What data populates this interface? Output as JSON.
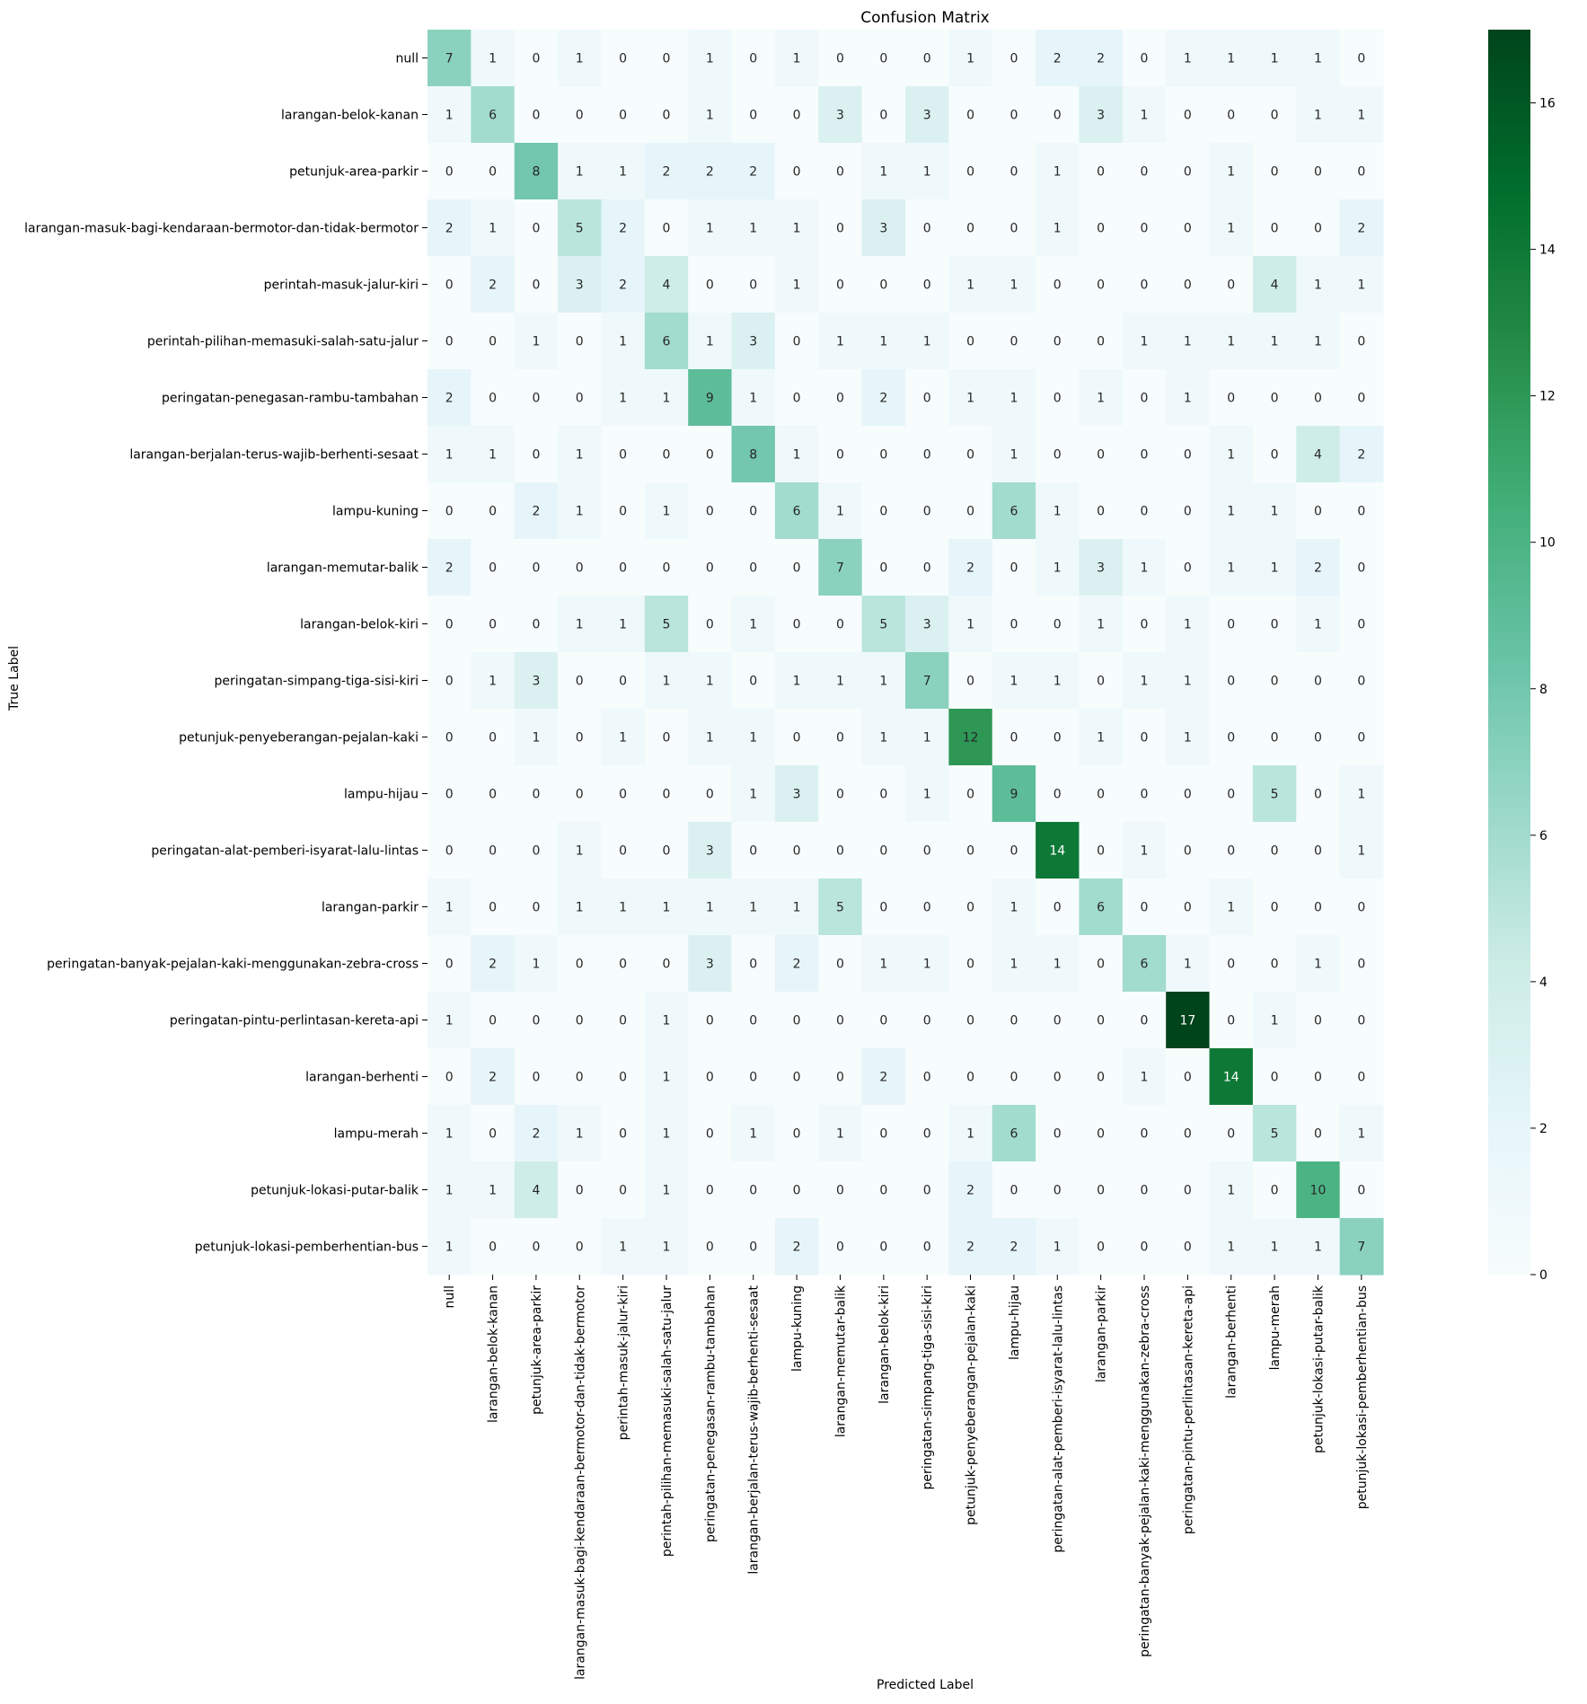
{
  "chart_data": {
    "type": "heatmap",
    "title": "Confusion Matrix",
    "xlabel": "Predicted Label",
    "ylabel": "True Label",
    "labels": [
      "null",
      "larangan-belok-kanan",
      "petunjuk-area-parkir",
      "larangan-masuk-bagi-kendaraan-bermotor-dan-tidak-bermotor",
      "perintah-masuk-jalur-kiri",
      "perintah-pilihan-memasuki-salah-satu-jalur",
      "peringatan-penegasan-rambu-tambahan",
      "larangan-berjalan-terus-wajib-berhenti-sesaat",
      "lampu-kuning",
      "larangan-memutar-balik",
      "larangan-belok-kiri",
      "peringatan-simpang-tiga-sisi-kiri",
      "petunjuk-penyeberangan-pejalan-kaki",
      "lampu-hijau",
      "peringatan-alat-pemberi-isyarat-lalu-lintas",
      "larangan-parkir",
      "peringatan-banyak-pejalan-kaki-menggunakan-zebra-cross",
      "peringatan-pintu-perlintasan-kereta-api",
      "larangan-berhenti",
      "lampu-merah",
      "petunjuk-lokasi-putar-balik",
      "petunjuk-lokasi-pemberhentian-bus"
    ],
    "matrix": [
      [
        7,
        1,
        0,
        1,
        0,
        0,
        1,
        0,
        1,
        0,
        0,
        0,
        1,
        0,
        2,
        2,
        0,
        1,
        1,
        1,
        1,
        0
      ],
      [
        1,
        6,
        0,
        0,
        0,
        0,
        1,
        0,
        0,
        3,
        0,
        3,
        0,
        0,
        0,
        3,
        1,
        0,
        0,
        0,
        1,
        1
      ],
      [
        0,
        0,
        8,
        1,
        1,
        2,
        2,
        2,
        0,
        0,
        1,
        1,
        0,
        0,
        1,
        0,
        0,
        0,
        1,
        0,
        0,
        0
      ],
      [
        2,
        1,
        0,
        5,
        2,
        0,
        1,
        1,
        1,
        0,
        3,
        0,
        0,
        0,
        1,
        0,
        0,
        0,
        1,
        0,
        0,
        2
      ],
      [
        0,
        2,
        0,
        3,
        2,
        4,
        0,
        0,
        1,
        0,
        0,
        0,
        1,
        1,
        0,
        0,
        0,
        0,
        0,
        4,
        1,
        1
      ],
      [
        0,
        0,
        1,
        0,
        1,
        6,
        1,
        3,
        0,
        1,
        1,
        1,
        0,
        0,
        0,
        0,
        1,
        1,
        1,
        1,
        1,
        0
      ],
      [
        2,
        0,
        0,
        0,
        1,
        1,
        9,
        1,
        0,
        0,
        2,
        0,
        1,
        1,
        0,
        1,
        0,
        1,
        0,
        0,
        0,
        0
      ],
      [
        1,
        1,
        0,
        1,
        0,
        0,
        0,
        8,
        1,
        0,
        0,
        0,
        0,
        1,
        0,
        0,
        0,
        0,
        1,
        0,
        4,
        2
      ],
      [
        0,
        0,
        2,
        1,
        0,
        1,
        0,
        0,
        6,
        1,
        0,
        0,
        0,
        6,
        1,
        0,
        0,
        0,
        1,
        1,
        0,
        0
      ],
      [
        2,
        0,
        0,
        0,
        0,
        0,
        0,
        0,
        0,
        7,
        0,
        0,
        2,
        0,
        1,
        3,
        1,
        0,
        1,
        1,
        2,
        0
      ],
      [
        0,
        0,
        0,
        1,
        1,
        5,
        0,
        1,
        0,
        0,
        5,
        3,
        1,
        0,
        0,
        1,
        0,
        1,
        0,
        0,
        1,
        0
      ],
      [
        0,
        1,
        3,
        0,
        0,
        1,
        1,
        0,
        1,
        1,
        1,
        7,
        0,
        1,
        1,
        0,
        1,
        1,
        0,
        0,
        0,
        0
      ],
      [
        0,
        0,
        1,
        0,
        1,
        0,
        1,
        1,
        0,
        0,
        1,
        1,
        12,
        0,
        0,
        1,
        0,
        1,
        0,
        0,
        0,
        0
      ],
      [
        0,
        0,
        0,
        0,
        0,
        0,
        0,
        1,
        3,
        0,
        0,
        1,
        0,
        9,
        0,
        0,
        0,
        0,
        0,
        5,
        0,
        1
      ],
      [
        0,
        0,
        0,
        1,
        0,
        0,
        3,
        0,
        0,
        0,
        0,
        0,
        0,
        0,
        14,
        0,
        1,
        0,
        0,
        0,
        0,
        1
      ],
      [
        1,
        0,
        0,
        1,
        1,
        1,
        1,
        1,
        1,
        5,
        0,
        0,
        0,
        1,
        0,
        6,
        0,
        0,
        1,
        0,
        0,
        0
      ],
      [
        0,
        2,
        1,
        0,
        0,
        0,
        3,
        0,
        2,
        0,
        1,
        1,
        0,
        1,
        1,
        0,
        6,
        1,
        0,
        0,
        1,
        0
      ],
      [
        1,
        0,
        0,
        0,
        0,
        1,
        0,
        0,
        0,
        0,
        0,
        0,
        0,
        0,
        0,
        0,
        0,
        17,
        0,
        1,
        0,
        0
      ],
      [
        0,
        2,
        0,
        0,
        0,
        1,
        0,
        0,
        0,
        0,
        2,
        0,
        0,
        0,
        0,
        0,
        1,
        0,
        14,
        0,
        0,
        0
      ],
      [
        1,
        0,
        2,
        1,
        0,
        1,
        0,
        1,
        0,
        1,
        0,
        0,
        1,
        6,
        0,
        0,
        0,
        0,
        0,
        5,
        0,
        1
      ],
      [
        1,
        1,
        4,
        0,
        0,
        1,
        0,
        0,
        0,
        0,
        0,
        0,
        2,
        0,
        0,
        0,
        0,
        0,
        1,
        0,
        10,
        0
      ],
      [
        1,
        0,
        0,
        0,
        1,
        1,
        0,
        0,
        2,
        0,
        0,
        0,
        2,
        2,
        1,
        0,
        0,
        0,
        1,
        1,
        1,
        7
      ]
    ],
    "colorbar": {
      "cmap": "BuGn",
      "vmin": 0,
      "vmax": 17,
      "ticks": [
        0,
        2,
        4,
        6,
        8,
        10,
        12,
        14,
        16
      ],
      "colors": [
        "#f7fcfd",
        "#e5f5f9",
        "#ccece6",
        "#99d8c9",
        "#66c2a4",
        "#41ae76",
        "#238b45",
        "#006d2c",
        "#00441b"
      ]
    },
    "annotation_colors": {
      "dark_text": "#262626",
      "light_text": "#ffffff"
    },
    "grid": false,
    "legend": "colorbar-right"
  }
}
